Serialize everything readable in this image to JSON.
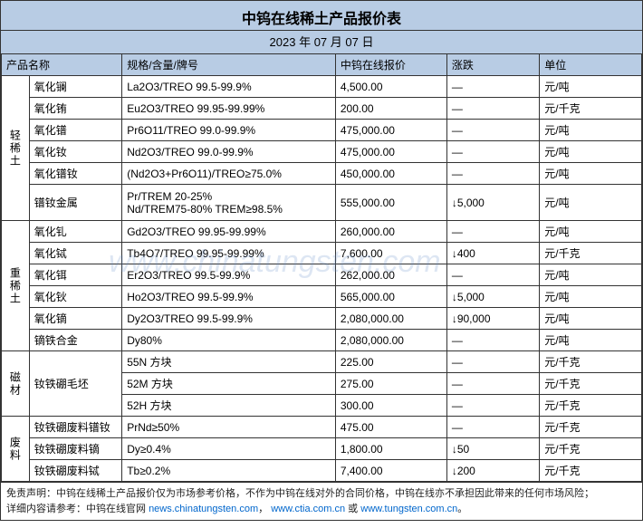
{
  "header": {
    "title": "中钨在线稀土产品报价表",
    "date": "2023 年 07 月 07 日"
  },
  "columns": [
    "产品名称",
    "规格/含量/牌号",
    "中钨在线报价",
    "涨跌",
    "单位"
  ],
  "groups": [
    {
      "category": "轻稀土",
      "rows": [
        {
          "name": "氧化镧",
          "spec": "La2O3/TREO 99.5-99.9%",
          "price": "4,500.00",
          "change": "—",
          "unit": "元/吨"
        },
        {
          "name": "氧化铕",
          "spec": "Eu2O3/TREO 99.95-99.99%",
          "price": "200.00",
          "change": "—",
          "unit": "元/千克"
        },
        {
          "name": "氧化镨",
          "spec": "Pr6O11/TREO 99.0-99.9%",
          "price": "475,000.00",
          "change": "—",
          "unit": "元/吨"
        },
        {
          "name": "氧化钕",
          "spec": "Nd2O3/TREO 99.0-99.9%",
          "price": "475,000.00",
          "change": "—",
          "unit": "元/吨"
        },
        {
          "name": "氧化镨钕",
          "spec": "(Nd2O3+Pr6O11)/TREO≥75.0%",
          "price": "450,000.00",
          "change": "—",
          "unit": "元/吨"
        },
        {
          "name": "镨钕金属",
          "spec": "Pr/TREM 20-25%\nNd/TREM75-80% TREM≥98.5%",
          "price": "555,000.00",
          "change": "↓5,000",
          "unit": "元/吨"
        }
      ]
    },
    {
      "category": "重稀土",
      "rows": [
        {
          "name": "氧化钆",
          "spec": "Gd2O3/TREO 99.95-99.99%",
          "price": "260,000.00",
          "change": "—",
          "unit": "元/吨"
        },
        {
          "name": "氧化铽",
          "spec": "Tb4O7/TREO 99.95-99.99%",
          "price": "7,600.00",
          "change": "↓400",
          "unit": "元/千克"
        },
        {
          "name": "氧化铒",
          "spec": "Er2O3/TREO 99.5-99.9%",
          "price": "262,000.00",
          "change": "—",
          "unit": "元/吨"
        },
        {
          "name": "氧化钬",
          "spec": "Ho2O3/TREO 99.5-99.9%",
          "price": "565,000.00",
          "change": "↓5,000",
          "unit": "元/吨"
        },
        {
          "name": "氧化镝",
          "spec": "Dy2O3/TREO 99.5-99.9%",
          "price": "2,080,000.00",
          "change": "↓90,000",
          "unit": "元/吨"
        },
        {
          "name": "镝铁合金",
          "spec": "Dy80%",
          "price": "2,080,000.00",
          "change": "—",
          "unit": "元/吨"
        }
      ]
    },
    {
      "category": "磁材",
      "rows": [
        {
          "name": "钕铁硼毛坯",
          "spec": "55N 方块",
          "price": "225.00",
          "change": "—",
          "unit": "元/千克",
          "merge": 3
        },
        {
          "name": "",
          "spec": "52M 方块",
          "price": "275.00",
          "change": "—",
          "unit": "元/千克"
        },
        {
          "name": "",
          "spec": "52H 方块",
          "price": "300.00",
          "change": "—",
          "unit": "元/千克"
        }
      ]
    },
    {
      "category": "废料",
      "rows": [
        {
          "name": "钕铁硼废料镨钕",
          "spec": "PrNd≥50%",
          "price": "475.00",
          "change": "—",
          "unit": "元/千克"
        },
        {
          "name": "钕铁硼废料镝",
          "spec": "Dy≥0.4%",
          "price": "1,800.00",
          "change": "↓50",
          "unit": "元/千克"
        },
        {
          "name": "钕铁硼废料铽",
          "spec": "Tb≥0.2%",
          "price": "7,400.00",
          "change": "↓200",
          "unit": "元/千克"
        }
      ]
    }
  ],
  "footer": {
    "line1_a": "免责声明：中钨在线稀土产品报价仅为市场参考价格，不作为中钨在线对外的合同价格，中钨在线亦不承担因此带来的任何市场风险；",
    "line2_a": "详细内容请参考：中钨在线官网 ",
    "link1": "news.chinatungsten.com",
    "sep1": "，",
    "link2": "www.ctia.com.cn",
    "sep2": " 或 ",
    "link3": "www.tungsten.com.cn",
    "tail": "。"
  },
  "watermark": "www.chinatungsten.com",
  "colors": {
    "header_bg": "#b8cce4",
    "border": "#333333",
    "link": "#0066cc"
  }
}
